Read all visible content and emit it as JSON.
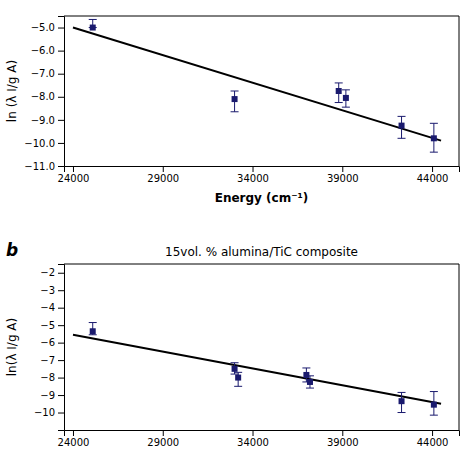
{
  "chart_data": [
    {
      "type": "scatter",
      "x_label": "Energy (cm⁻¹)",
      "y_label": "ln (λ I/g A)",
      "xlim": [
        23500,
        45500
      ],
      "xticks": [
        24000,
        29000,
        34000,
        39000,
        44000
      ],
      "ylim": [
        -11.0,
        -4.5
      ],
      "yticks": [
        -11,
        -10,
        -9,
        -8,
        -7,
        -6,
        -5
      ],
      "series": [
        {
          "type": "scatter",
          "marker": "square",
          "color": "#1a1a6e",
          "x": [
            25100,
            33000,
            38800,
            39200,
            42300,
            44100
          ],
          "values": [
            -5.0,
            -8.1,
            -7.75,
            -8.05,
            -9.25,
            -9.8
          ],
          "error_lo": [
            0.0,
            0.55,
            0.5,
            0.4,
            0.55,
            0.6
          ],
          "error_hi": [
            0.35,
            0.35,
            0.35,
            0.35,
            0.4,
            0.65
          ]
        },
        {
          "type": "line",
          "color": "#000000",
          "x": [
            24000,
            44500
          ],
          "values": [
            -5.0,
            -9.9
          ]
        }
      ]
    },
    {
      "type": "scatter",
      "title": "15vol. % alumina/TiC composite",
      "panel_label": "b",
      "y_label": "ln(λ I/g A)",
      "xlim": [
        23500,
        45500
      ],
      "xticks": [
        24000,
        29000,
        34000,
        39000,
        44000
      ],
      "ylim": [
        -11.0,
        -1.5
      ],
      "yticks": [
        -10,
        -9,
        -8,
        -7,
        -6,
        -5,
        -4,
        -3,
        -2
      ],
      "series": [
        {
          "type": "scatter",
          "marker": "square",
          "color": "#1a1a6e",
          "x": [
            25100,
            33000,
            33200,
            37000,
            37200,
            42300,
            44100
          ],
          "values": [
            -5.35,
            -7.5,
            -8.0,
            -7.85,
            -8.25,
            -9.35,
            -9.55
          ],
          "error_lo": [
            0.2,
            0.3,
            0.5,
            0.4,
            0.35,
            0.65,
            0.6
          ],
          "error_hi": [
            0.5,
            0.35,
            0.3,
            0.4,
            0.35,
            0.5,
            0.75
          ]
        },
        {
          "type": "line",
          "color": "#000000",
          "x": [
            24000,
            44500
          ],
          "values": [
            -5.55,
            -9.5
          ]
        }
      ]
    }
  ]
}
